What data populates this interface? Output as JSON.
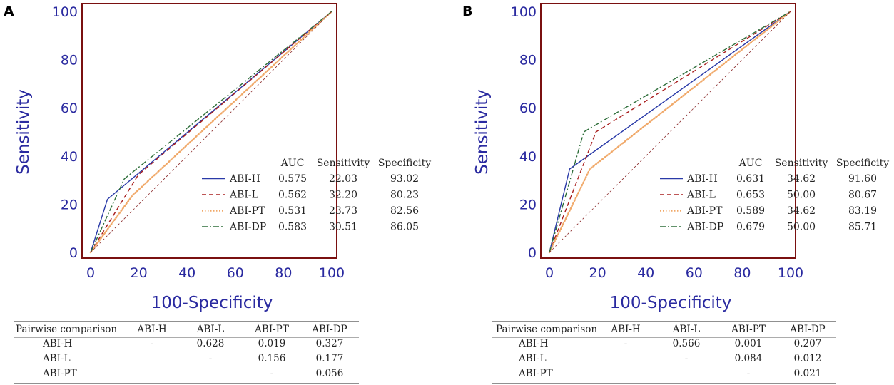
{
  "colors": {
    "frame": "#7a1010",
    "axis_text": "#2a2aa0",
    "ABI-H": "#2a3aa8",
    "ABI-L": "#a81e1e",
    "ABI-PT": "#f0a868",
    "ABI-DP": "#2e6e3a",
    "reference": "#8a2a2a"
  },
  "chart_data": [
    {
      "panel": "A",
      "type": "line",
      "xlabel": "100-Specificity",
      "ylabel": "Sensitivity",
      "xlim": [
        0,
        100
      ],
      "ylim": [
        0,
        100
      ],
      "xticks": [
        0,
        20,
        40,
        60,
        80,
        100
      ],
      "yticks": [
        0,
        20,
        40,
        60,
        80,
        100
      ],
      "series": [
        {
          "name": "ABI-H",
          "style": "solid",
          "x": [
            0,
            6.98,
            100
          ],
          "y": [
            0,
            22.03,
            100
          ]
        },
        {
          "name": "ABI-L",
          "style": "dashed",
          "x": [
            0,
            19.77,
            100
          ],
          "y": [
            0,
            32.2,
            100
          ]
        },
        {
          "name": "ABI-PT",
          "style": "dotted",
          "x": [
            0,
            17.44,
            100
          ],
          "y": [
            0,
            23.73,
            100
          ]
        },
        {
          "name": "ABI-DP",
          "style": "dashdot",
          "x": [
            0,
            13.95,
            100
          ],
          "y": [
            0,
            30.51,
            100
          ]
        },
        {
          "name": "reference",
          "style": "thin-dashed",
          "x": [
            0,
            100
          ],
          "y": [
            0,
            100
          ]
        }
      ],
      "legend": {
        "headers": [
          "AUC",
          "Sensitivity",
          "Specificity"
        ],
        "rows": [
          {
            "name": "ABI-H",
            "auc": "0.575",
            "sens": "22.03",
            "spec": "93.02"
          },
          {
            "name": "ABI-L",
            "auc": "0.562",
            "sens": "32.20",
            "spec": "80.23"
          },
          {
            "name": "ABI-PT",
            "auc": "0.531",
            "sens": "23.73",
            "spec": "82.56"
          },
          {
            "name": "ABI-DP",
            "auc": "0.583",
            "sens": "30.51",
            "spec": "86.05"
          }
        ]
      },
      "table": {
        "headers": [
          "Pairwise comparison",
          "ABI-H",
          "ABI-L",
          "ABI-PT",
          "ABI-DP"
        ],
        "rows": [
          [
            "ABI-H",
            "-",
            "0.628",
            "0.019",
            "0.327"
          ],
          [
            "ABI-L",
            "",
            "-",
            "0.156",
            "0.177"
          ],
          [
            "ABI-PT",
            "",
            "",
            "-",
            "0.056"
          ]
        ]
      }
    },
    {
      "panel": "B",
      "type": "line",
      "xlabel": "100-Specificity",
      "ylabel": "Sensitivity",
      "xlim": [
        0,
        100
      ],
      "ylim": [
        0,
        100
      ],
      "xticks": [
        0,
        20,
        40,
        60,
        80,
        100
      ],
      "yticks": [
        0,
        20,
        40,
        60,
        80,
        100
      ],
      "series": [
        {
          "name": "ABI-H",
          "style": "solid",
          "x": [
            0,
            8.4,
            100
          ],
          "y": [
            0,
            34.62,
            100
          ]
        },
        {
          "name": "ABI-L",
          "style": "dashed",
          "x": [
            0,
            19.33,
            100
          ],
          "y": [
            0,
            50.0,
            100
          ]
        },
        {
          "name": "ABI-PT",
          "style": "dotted",
          "x": [
            0,
            16.81,
            100
          ],
          "y": [
            0,
            34.62,
            100
          ]
        },
        {
          "name": "ABI-DP",
          "style": "dashdot",
          "x": [
            0,
            14.29,
            100
          ],
          "y": [
            0,
            50.0,
            100
          ]
        },
        {
          "name": "reference",
          "style": "thin-dashed",
          "x": [
            0,
            100
          ],
          "y": [
            0,
            100
          ]
        }
      ],
      "legend": {
        "headers": [
          "AUC",
          "Sensitivity",
          "Specificity"
        ],
        "rows": [
          {
            "name": "ABI-H",
            "auc": "0.631",
            "sens": "34.62",
            "spec": "91.60"
          },
          {
            "name": "ABI-L",
            "auc": "0.653",
            "sens": "50.00",
            "spec": "80.67"
          },
          {
            "name": "ABI-PT",
            "auc": "0.589",
            "sens": "34.62",
            "spec": "83.19"
          },
          {
            "name": "ABI-DP",
            "auc": "0.679",
            "sens": "50.00",
            "spec": "85.71"
          }
        ]
      },
      "table": {
        "headers": [
          "Pairwise comparison",
          "ABI-H",
          "ABI-L",
          "ABI-PT",
          "ABI-DP"
        ],
        "rows": [
          [
            "ABI-H",
            "-",
            "0.566",
            "0.001",
            "0.207"
          ],
          [
            "ABI-L",
            "",
            "-",
            "0.084",
            "0.012"
          ],
          [
            "ABI-PT",
            "",
            "",
            "-",
            "0.021"
          ]
        ]
      }
    }
  ]
}
